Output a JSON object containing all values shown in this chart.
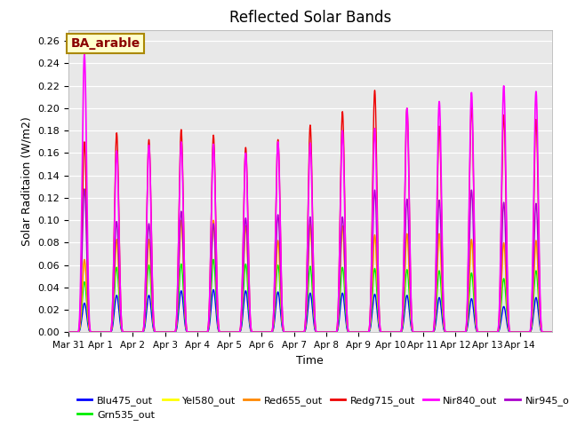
{
  "title": "Reflected Solar Bands",
  "xlabel": "Time",
  "ylabel": "Solar Raditaion (W/m2)",
  "annotation": "BA_arable",
  "ylim": [
    0,
    0.27
  ],
  "yticks": [
    0.0,
    0.02,
    0.04,
    0.06,
    0.08,
    0.1,
    0.12,
    0.14,
    0.16,
    0.18,
    0.2,
    0.22,
    0.24,
    0.26
  ],
  "xtick_labels": [
    "Mar 31",
    "Apr 1",
    "Apr 2",
    "Apr 3",
    "Apr 4",
    "Apr 5",
    "Apr 6",
    "Apr 7",
    "Apr 8",
    "Apr 9",
    "Apr 10",
    "Apr 11",
    "Apr 12",
    "Apr 13",
    "Apr 14"
  ],
  "bands": {
    "Blu475_out": {
      "color": "#0000ff",
      "lw": 1.0,
      "peaks": [
        0.026,
        0.033,
        0.033,
        0.037,
        0.038,
        0.037,
        0.036,
        0.035,
        0.035,
        0.034,
        0.033,
        0.031,
        0.03,
        0.023,
        0.031
      ]
    },
    "Grn535_out": {
      "color": "#00ee00",
      "lw": 1.0,
      "peaks": [
        0.045,
        0.058,
        0.06,
        0.061,
        0.065,
        0.061,
        0.06,
        0.059,
        0.058,
        0.057,
        0.056,
        0.055,
        0.053,
        0.048,
        0.055
      ]
    },
    "Yel580_out": {
      "color": "#ffff00",
      "lw": 1.0,
      "peaks": [
        0.063,
        0.08,
        0.08,
        0.099,
        0.099,
        0.094,
        0.08,
        0.095,
        0.093,
        0.085,
        0.086,
        0.086,
        0.08,
        0.078,
        0.08
      ]
    },
    "Red655_out": {
      "color": "#ff8800",
      "lw": 1.0,
      "peaks": [
        0.065,
        0.083,
        0.083,
        0.1,
        0.1,
        0.095,
        0.082,
        0.097,
        0.095,
        0.087,
        0.088,
        0.088,
        0.083,
        0.08,
        0.082
      ]
    },
    "Redg715_out": {
      "color": "#ee0000",
      "lw": 1.0,
      "peaks": [
        0.17,
        0.178,
        0.172,
        0.181,
        0.176,
        0.165,
        0.172,
        0.185,
        0.197,
        0.216,
        0.2,
        0.184,
        0.202,
        0.194,
        0.19
      ]
    },
    "Nir840_out": {
      "color": "#ff00ff",
      "lw": 1.2,
      "peaks": [
        0.248,
        0.162,
        0.167,
        0.17,
        0.168,
        0.16,
        0.17,
        0.169,
        0.18,
        0.182,
        0.2,
        0.206,
        0.214,
        0.22,
        0.215
      ]
    },
    "Nir945_out": {
      "color": "#aa00cc",
      "lw": 1.0,
      "peaks": [
        0.128,
        0.099,
        0.097,
        0.108,
        0.097,
        0.102,
        0.105,
        0.103,
        0.103,
        0.127,
        0.119,
        0.118,
        0.127,
        0.116,
        0.115
      ]
    }
  },
  "plot_bg_color": "#e8e8e8",
  "grid_color": "#ffffff"
}
